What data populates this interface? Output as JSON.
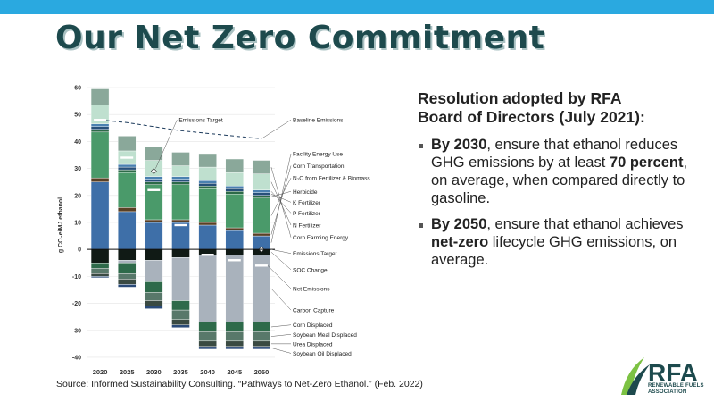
{
  "slide": {
    "title": "Our Net Zero Commitment",
    "source": "Source: Informed Sustainability Consulting. “Pathways to Net-Zero Ethanol.” (Feb.  2022)"
  },
  "panel": {
    "heading_line1": "Resolution adopted by RFA",
    "heading_line2": "Board of Directors (July 2021):",
    "bullets": [
      {
        "bold": "By 2030",
        "text_a": ", ensure that ethanol reduces GHG emissions by at least ",
        "bold2": "70 percent",
        "text_b": ", on average, when compared directly to gasoline."
      },
      {
        "bold": "By 2050",
        "text_a": ", ensure that ethanol achieves ",
        "bold2": "net-zero",
        "text_b": " lifecycle GHG emissions, on average."
      }
    ]
  },
  "logo": {
    "text": "RFA",
    "sub_line1": "RENEWABLE FUELS",
    "sub_line2": "ASSOCIATION"
  },
  "colors": {
    "topbar": "#2aa9e0",
    "title": "#1d4a4d",
    "facility_energy": "#3e6fa8",
    "corn_transport": "#5a4025",
    "n2o": "#4a9a6a",
    "herbicide": "#2d6a48",
    "k_fert": "#27507a",
    "p_fert": "#4a80b0",
    "n_fert": "#bfe0cf",
    "corn_farming": "#8aa89a",
    "soc_change": "#101a15",
    "carbon_capture": "#a9b2bc",
    "corn_displaced": "#2e6a4a",
    "meal_displaced": "#58786a",
    "urea_displaced": "#3a4a42",
    "oil_displaced": "#2a4a78"
  },
  "chart_data": {
    "type": "bar",
    "stacked": true,
    "categories": [
      "2020",
      "2025",
      "2030",
      "2035",
      "2040",
      "2045",
      "2050"
    ],
    "ylabel": "g CO₂e/MJ ethanol",
    "ylim": [
      -42,
      60
    ],
    "yticks": [
      60,
      50,
      40,
      30,
      20,
      10,
      0,
      -10,
      -20,
      -30,
      -40
    ],
    "series": [
      {
        "name": "Facility Energy Use",
        "color_key": "facility_energy",
        "values": [
          25,
          14,
          10,
          10,
          9,
          7,
          5
        ]
      },
      {
        "name": "Corn Transportation",
        "color_key": "corn_transport",
        "values": [
          1.5,
          1.5,
          1,
          1,
          1,
          1,
          1
        ]
      },
      {
        "name": "N₂O from Fertilizer & Biomass",
        "color_key": "n2o",
        "values": [
          17,
          13,
          13,
          13,
          12.5,
          12.5,
          13
        ]
      },
      {
        "name": "Herbicide",
        "color_key": "herbicide",
        "values": [
          1,
          1,
          1,
          1,
          1,
          1,
          1
        ]
      },
      {
        "name": "K Fertilizer",
        "color_key": "k_fert",
        "values": [
          1,
          1,
          1,
          1,
          1,
          1,
          1
        ]
      },
      {
        "name": "P Fertilizer",
        "color_key": "p_fert",
        "values": [
          1,
          1,
          1,
          1,
          1,
          1,
          1
        ]
      },
      {
        "name": "N Fertilizer",
        "color_key": "n_fert",
        "values": [
          7,
          5,
          6,
          4,
          5,
          5,
          6
        ]
      },
      {
        "name": "Corn Farming Energy",
        "color_key": "corn_farming",
        "values": [
          6,
          5.5,
          5,
          5,
          5,
          5,
          5
        ]
      },
      {
        "name": "SOC Change",
        "color_key": "soc_change",
        "values": [
          -5,
          -4,
          -4,
          -3,
          -2,
          -2,
          -2
        ]
      },
      {
        "name": "Carbon Capture",
        "color_key": "carbon_capture",
        "values": [
          0,
          -1,
          -8,
          -16,
          -25,
          -25,
          -25
        ]
      },
      {
        "name": "Corn Displaced",
        "color_key": "corn_displaced",
        "values": [
          -2,
          -4,
          -4,
          -3.5,
          -3.5,
          -3.5,
          -3.5
        ]
      },
      {
        "name": "Soybean Meal Displaced",
        "color_key": "meal_displaced",
        "values": [
          -2,
          -2,
          -3,
          -3.5,
          -3.5,
          -3.5,
          -3.5
        ]
      },
      {
        "name": "Urea Displaced",
        "color_key": "urea_displaced",
        "values": [
          -1,
          -2,
          -2,
          -2,
          -2,
          -2,
          -2
        ]
      },
      {
        "name": "Soybean Oil Displaced",
        "color_key": "oil_displaced",
        "values": [
          -0.5,
          -1,
          -1,
          -1,
          -1,
          -1,
          -1
        ]
      }
    ],
    "baseline_emissions": [
      48,
      47,
      45.5,
      44,
      43,
      42,
      41
    ],
    "emissions_target": [
      null,
      null,
      29,
      null,
      null,
      null,
      0
    ],
    "net_emissions": [
      48,
      34,
      22,
      9,
      -2,
      -4,
      -6
    ],
    "annotations": {
      "emissions_target": "Emissions Target",
      "baseline_emissions": "Baseline Emissions",
      "emissions_target_zero": "Emissions Target",
      "net_emissions": "Net Emissions"
    }
  }
}
